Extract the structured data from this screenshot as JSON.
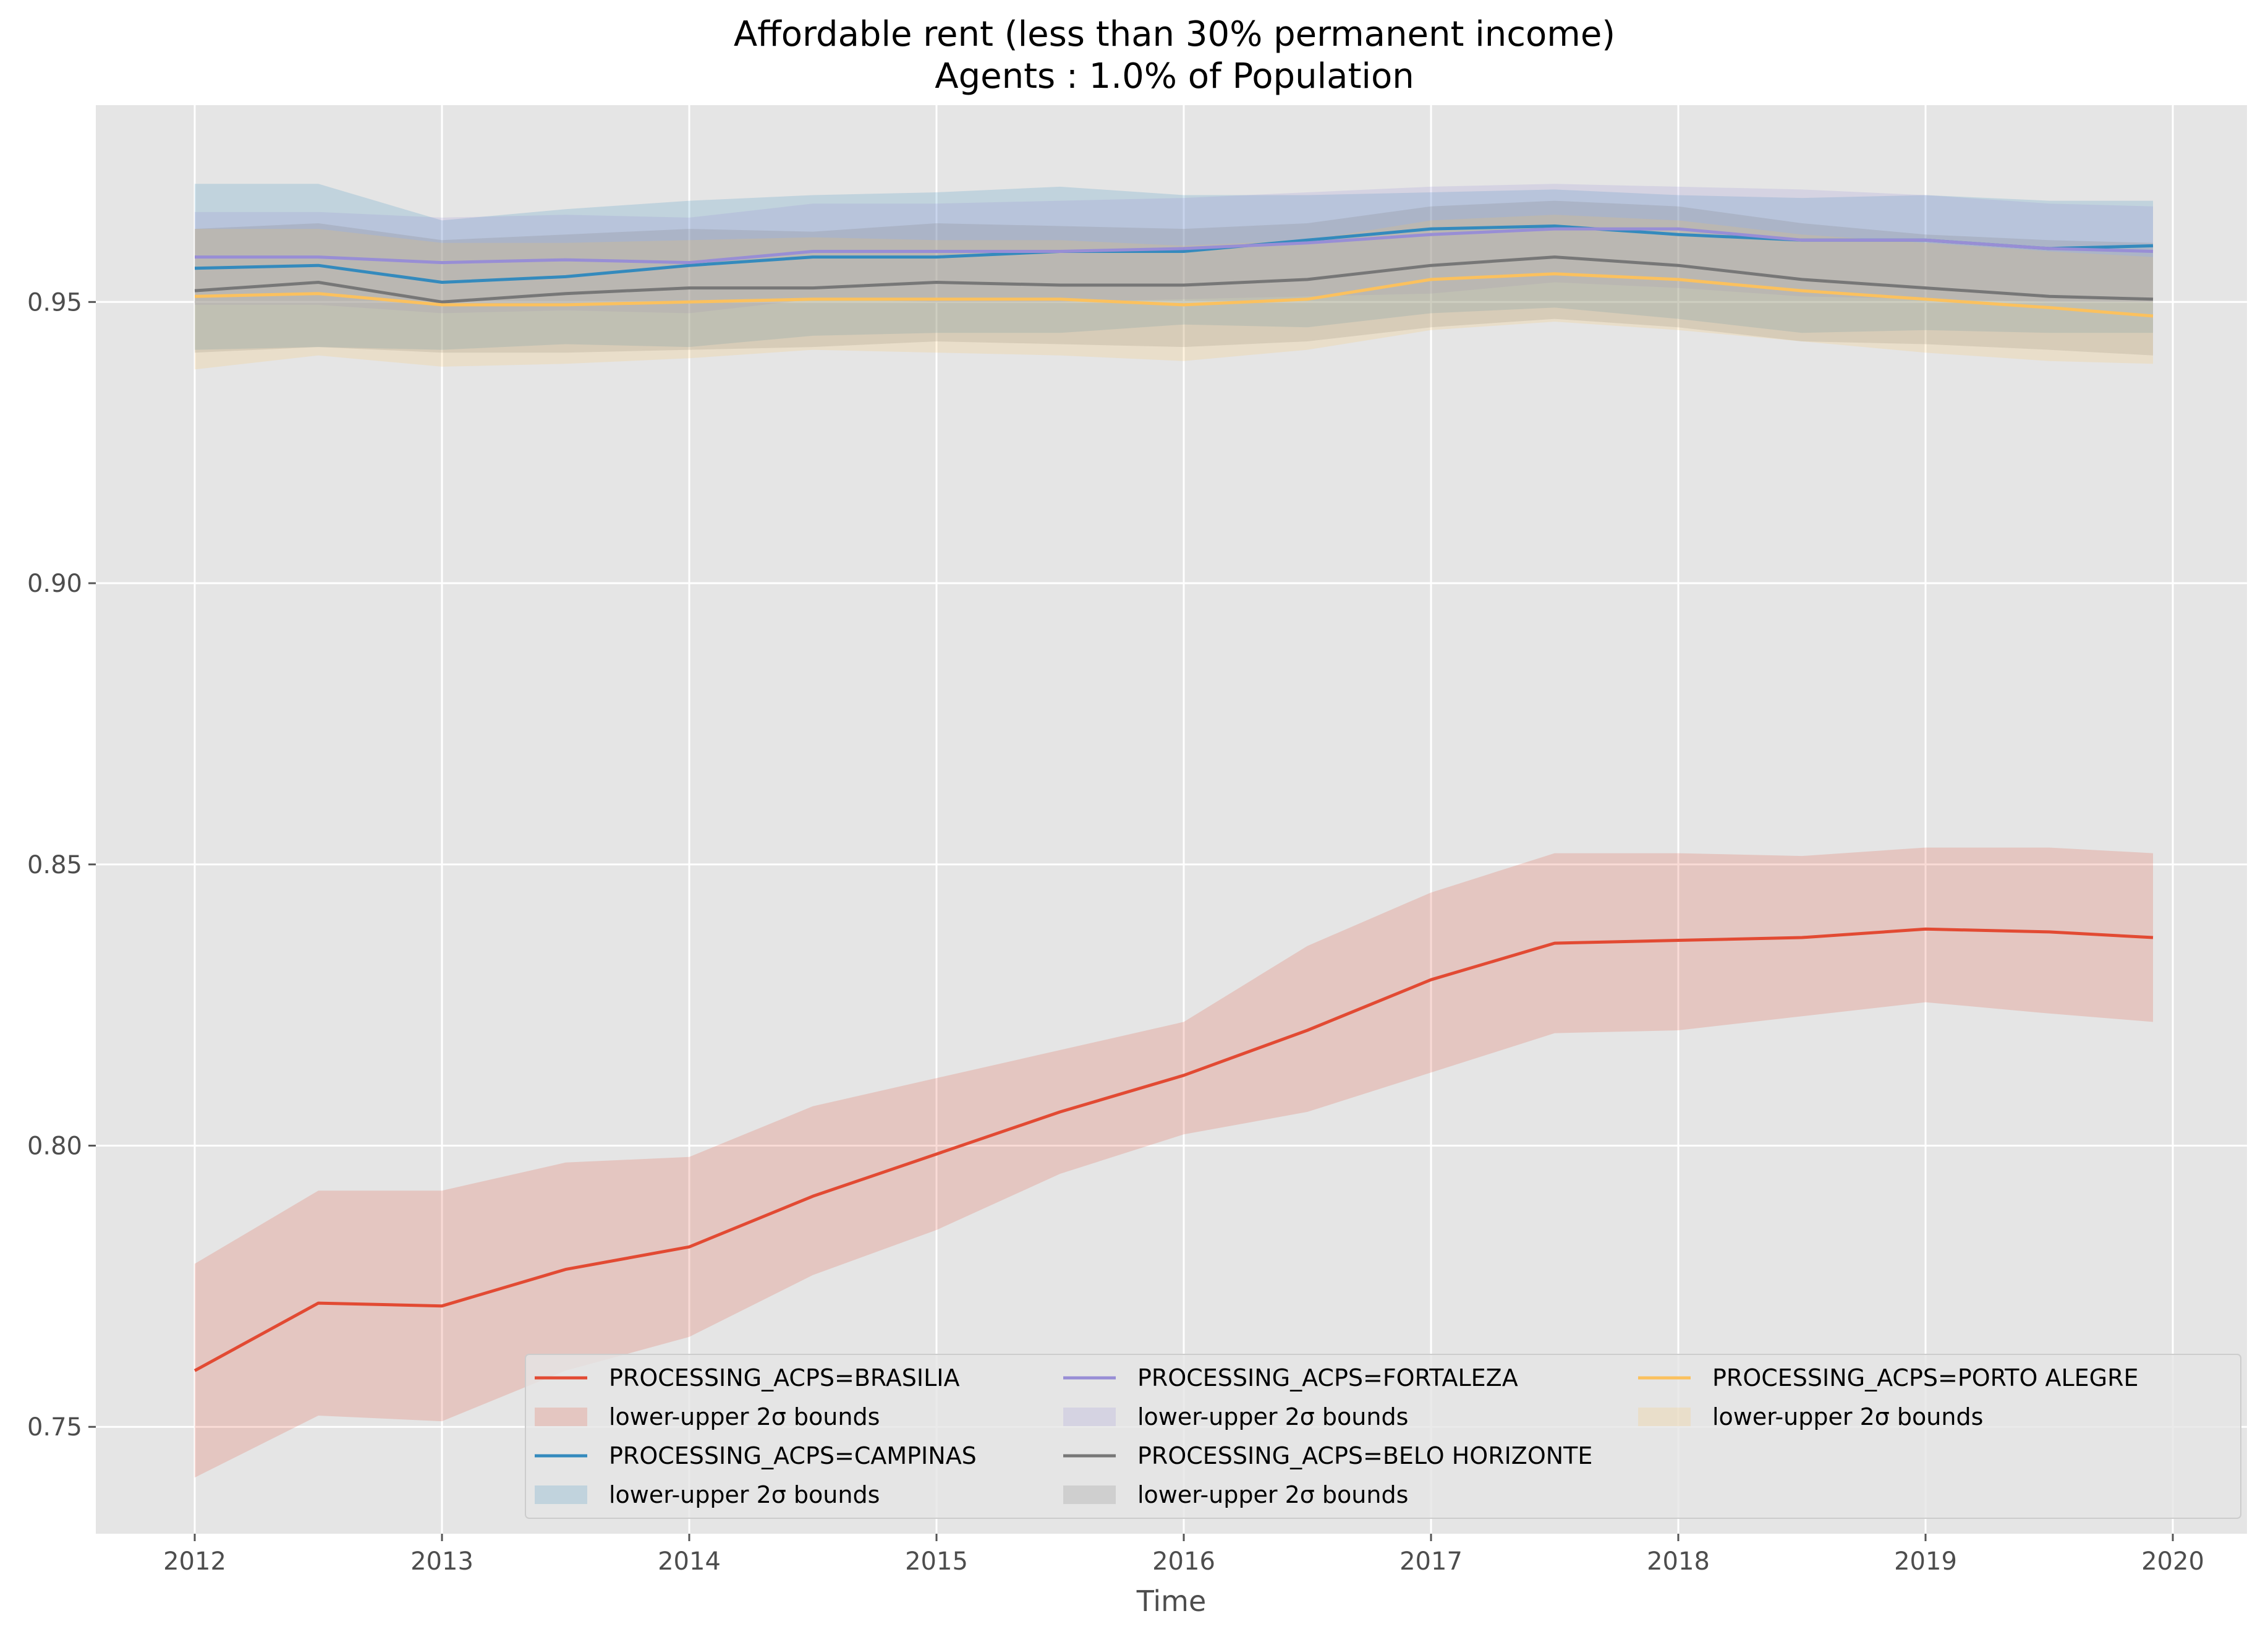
{
  "chart_data": {
    "type": "line",
    "title": "Affordable rent (less than 30% permanent income)",
    "subtitle": "Agents : 1.0% of Population",
    "xlabel": "Time",
    "ylabel": "",
    "xlim": [
      2011.6,
      2020.3
    ],
    "ylim": [
      0.731,
      0.985
    ],
    "x_ticks": [
      2012,
      2013,
      2014,
      2015,
      2016,
      2017,
      2018,
      2019,
      2020
    ],
    "x_tick_labels": [
      "2012",
      "2013",
      "2014",
      "2015",
      "2016",
      "2017",
      "2018",
      "2019",
      "2020"
    ],
    "y_ticks": [
      0.75,
      0.8,
      0.85,
      0.9,
      0.95
    ],
    "y_tick_labels": [
      "0.75",
      "0.80",
      "0.85",
      "0.90",
      "0.95"
    ],
    "grid": true,
    "legend_position": "lower-right",
    "legend_columns": 3,
    "series": [
      {
        "name": "PROCESSING_ACPS=BRASILIA",
        "band_label": "lower-upper 2σ bounds",
        "color": "#E24A33",
        "x": [
          2012.0,
          2012.5,
          2013.0,
          2013.5,
          2014.0,
          2014.5,
          2015.0,
          2015.5,
          2016.0,
          2016.5,
          2017.0,
          2017.5,
          2018.0,
          2018.5,
          2019.0,
          2019.5,
          2019.92
        ],
        "y": [
          0.76,
          0.772,
          0.7715,
          0.778,
          0.782,
          0.791,
          0.7985,
          0.806,
          0.8125,
          0.8205,
          0.8295,
          0.836,
          0.8365,
          0.837,
          0.8385,
          0.838,
          0.837
        ],
        "lower": [
          0.741,
          0.752,
          0.751,
          0.76,
          0.766,
          0.777,
          0.785,
          0.795,
          0.802,
          0.806,
          0.813,
          0.82,
          0.8205,
          0.823,
          0.8255,
          0.8235,
          0.822
        ],
        "upper": [
          0.779,
          0.792,
          0.792,
          0.797,
          0.798,
          0.807,
          0.812,
          0.817,
          0.822,
          0.8355,
          0.845,
          0.852,
          0.852,
          0.8515,
          0.853,
          0.853,
          0.852
        ]
      },
      {
        "name": "PROCESSING_ACPS=CAMPINAS",
        "band_label": "lower-upper 2σ bounds",
        "color": "#348ABD",
        "x": [
          2012.0,
          2012.5,
          2013.0,
          2013.5,
          2014.0,
          2014.5,
          2015.0,
          2015.5,
          2016.0,
          2016.5,
          2017.0,
          2017.5,
          2018.0,
          2018.5,
          2019.0,
          2019.5,
          2019.92
        ],
        "y": [
          0.956,
          0.9565,
          0.9535,
          0.9545,
          0.9565,
          0.958,
          0.958,
          0.959,
          0.959,
          0.961,
          0.963,
          0.9635,
          0.962,
          0.961,
          0.961,
          0.9595,
          0.96
        ],
        "lower": [
          0.9415,
          0.942,
          0.9415,
          0.9425,
          0.942,
          0.944,
          0.9445,
          0.9445,
          0.946,
          0.9455,
          0.948,
          0.949,
          0.947,
          0.9445,
          0.945,
          0.9445,
          0.9445
        ],
        "upper": [
          0.971,
          0.971,
          0.9645,
          0.9665,
          0.968,
          0.969,
          0.9695,
          0.9705,
          0.969,
          0.969,
          0.9695,
          0.97,
          0.969,
          0.9685,
          0.969,
          0.968,
          0.968
        ]
      },
      {
        "name": "PROCESSING_ACPS=FORTALEZA",
        "band_label": "lower-upper 2σ bounds",
        "color": "#988ED5",
        "x": [
          2012.0,
          2012.5,
          2013.0,
          2013.5,
          2014.0,
          2014.5,
          2015.0,
          2015.5,
          2016.0,
          2016.5,
          2017.0,
          2017.5,
          2018.0,
          2018.5,
          2019.0,
          2019.5,
          2019.92
        ],
        "y": [
          0.958,
          0.958,
          0.957,
          0.9575,
          0.957,
          0.959,
          0.959,
          0.959,
          0.9595,
          0.9605,
          0.962,
          0.963,
          0.963,
          0.961,
          0.961,
          0.9595,
          0.959
        ],
        "lower": [
          0.9495,
          0.9495,
          0.948,
          0.9485,
          0.948,
          0.9505,
          0.95,
          0.95,
          0.9505,
          0.951,
          0.9515,
          0.9535,
          0.9525,
          0.951,
          0.9505,
          0.95,
          0.95
        ],
        "upper": [
          0.966,
          0.966,
          0.965,
          0.9655,
          0.965,
          0.9675,
          0.9675,
          0.968,
          0.9685,
          0.9695,
          0.9705,
          0.971,
          0.9705,
          0.97,
          0.969,
          0.9675,
          0.967
        ]
      },
      {
        "name": "PROCESSING_ACPS=BELO HORIZONTE",
        "band_label": "lower-upper 2σ bounds",
        "color": "#777777",
        "x": [
          2012.0,
          2012.5,
          2013.0,
          2013.5,
          2014.0,
          2014.5,
          2015.0,
          2015.5,
          2016.0,
          2016.5,
          2017.0,
          2017.5,
          2018.0,
          2018.5,
          2019.0,
          2019.5,
          2019.92
        ],
        "y": [
          0.952,
          0.9535,
          0.95,
          0.9515,
          0.9525,
          0.9525,
          0.9535,
          0.953,
          0.953,
          0.954,
          0.9565,
          0.958,
          0.9565,
          0.954,
          0.9525,
          0.951,
          0.9505
        ],
        "lower": [
          0.941,
          0.942,
          0.941,
          0.941,
          0.9415,
          0.942,
          0.943,
          0.9425,
          0.942,
          0.943,
          0.9455,
          0.947,
          0.9455,
          0.943,
          0.9425,
          0.9415,
          0.9405
        ],
        "upper": [
          0.963,
          0.964,
          0.961,
          0.962,
          0.963,
          0.9625,
          0.964,
          0.9635,
          0.963,
          0.964,
          0.967,
          0.968,
          0.967,
          0.964,
          0.962,
          0.961,
          0.9605
        ]
      },
      {
        "name": "PROCESSING_ACPS=PORTO ALEGRE",
        "band_label": "lower-upper 2σ bounds",
        "color": "#FBC15E",
        "x": [
          2012.0,
          2012.5,
          2013.0,
          2013.5,
          2014.0,
          2014.5,
          2015.0,
          2015.5,
          2016.0,
          2016.5,
          2017.0,
          2017.5,
          2018.0,
          2018.5,
          2019.0,
          2019.5,
          2019.92
        ],
        "y": [
          0.951,
          0.9515,
          0.9495,
          0.9495,
          0.95,
          0.9505,
          0.9505,
          0.9505,
          0.9495,
          0.9505,
          0.954,
          0.955,
          0.954,
          0.952,
          0.9505,
          0.949,
          0.9475
        ],
        "lower": [
          0.938,
          0.9405,
          0.9385,
          0.939,
          0.94,
          0.9415,
          0.941,
          0.9405,
          0.9395,
          0.9415,
          0.945,
          0.9465,
          0.945,
          0.943,
          0.941,
          0.9395,
          0.939
        ],
        "upper": [
          0.963,
          0.963,
          0.9605,
          0.9605,
          0.961,
          0.9615,
          0.961,
          0.961,
          0.96,
          0.961,
          0.9645,
          0.9655,
          0.9645,
          0.962,
          0.9605,
          0.959,
          0.958
        ]
      }
    ]
  }
}
